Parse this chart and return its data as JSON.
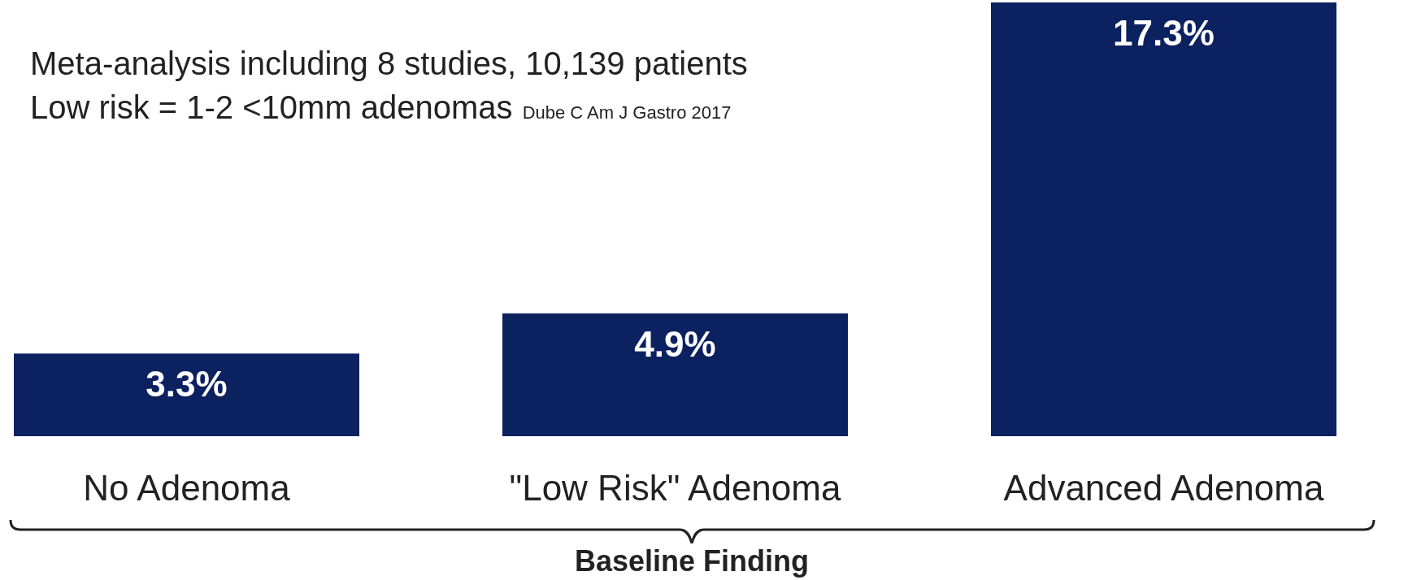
{
  "chart_data": {
    "type": "bar",
    "categories": [
      "No Adenoma",
      "\"Low Risk\" Adenoma",
      "Advanced Adenoma"
    ],
    "values": [
      3.3,
      4.9,
      17.3
    ],
    "value_labels": [
      "3.3%",
      "4.9%",
      "17.3%"
    ],
    "color": "#0b2160",
    "xlabel": "Baseline Finding",
    "annotations": [
      "Meta-analysis including 8 studies, 10,139 patients",
      "Low risk = 1-2 <10mm adenomas",
      "Dube C Am J Gastro 2017"
    ],
    "grid": false,
    "legend": false
  }
}
